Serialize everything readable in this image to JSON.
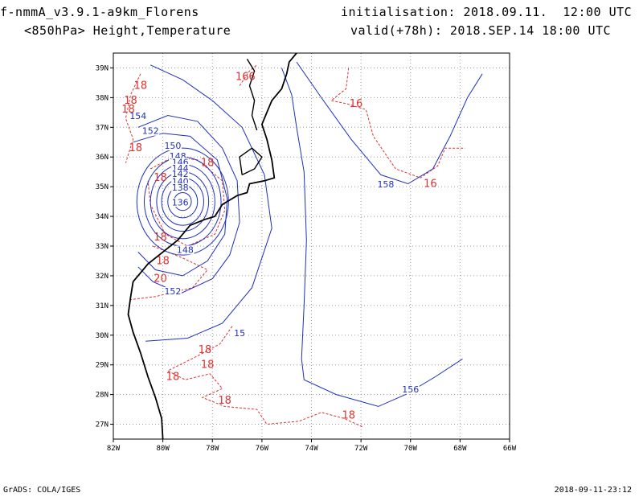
{
  "header": {
    "model": "f-nmmA_v3.9.1-a9km_Florens",
    "level": "<850hPa> Height,Temperature",
    "init": "initialisation: 2018.09.11.  12:00 UTC",
    "valid": "valid(+78h): 2018.SEP.14 18:00 UTC"
  },
  "footer": {
    "left": "GrADS: COLA/IGES",
    "right": "2018-09-11-23:12"
  },
  "colors": {
    "height_contour": "#1f2fbf",
    "temperature_contour": "#e03030",
    "coastline": "#000000",
    "grid": "#9a9a9a"
  },
  "map": {
    "lon_range": [
      -82,
      -66
    ],
    "lat_range": [
      26.5,
      39.5
    ],
    "lon_ticks": [
      {
        "value": -82,
        "label": "82W"
      },
      {
        "value": -80,
        "label": "80W"
      },
      {
        "value": -78,
        "label": "78W"
      },
      {
        "value": -76,
        "label": "76W"
      },
      {
        "value": -74,
        "label": "74W"
      },
      {
        "value": -72,
        "label": "72W"
      },
      {
        "value": -70,
        "label": "70W"
      },
      {
        "value": -68,
        "label": "68W"
      },
      {
        "value": -66,
        "label": "66W"
      }
    ],
    "lat_ticks": [
      {
        "value": 27,
        "label": "27N"
      },
      {
        "value": 28,
        "label": "28N"
      },
      {
        "value": 29,
        "label": "29N"
      },
      {
        "value": 30,
        "label": "30N"
      },
      {
        "value": 31,
        "label": "31N"
      },
      {
        "value": 32,
        "label": "32N"
      },
      {
        "value": 33,
        "label": "33N"
      },
      {
        "value": 34,
        "label": "34N"
      },
      {
        "value": 35,
        "label": "35N"
      },
      {
        "value": 36,
        "label": "36N"
      },
      {
        "value": 37,
        "label": "37N"
      },
      {
        "value": 38,
        "label": "38N"
      },
      {
        "value": 39,
        "label": "39N"
      }
    ],
    "cyclone_center": {
      "lon": -79.2,
      "lat": 34.5
    },
    "height_contours": [
      {
        "label": "136",
        "rx_deg": 0.35,
        "ry_deg": 0.3
      },
      {
        "label": "138",
        "rx_deg": 0.6,
        "ry_deg": 0.55
      },
      {
        "label": "140",
        "rx_deg": 0.85,
        "ry_deg": 0.8
      },
      {
        "label": "142",
        "rx_deg": 1.05,
        "ry_deg": 1.0
      },
      {
        "label": "144",
        "rx_deg": 1.3,
        "ry_deg": 1.25
      },
      {
        "label": "146",
        "rx_deg": 1.55,
        "ry_deg": 1.5
      },
      {
        "label": "148",
        "rx_deg": 1.85,
        "ry_deg": 1.8
      }
    ],
    "height_labels": [
      {
        "text": "154",
        "lon": -81.0,
        "lat": 37.3
      },
      {
        "text": "152",
        "lon": -80.5,
        "lat": 36.8
      },
      {
        "text": "150",
        "lon": -79.6,
        "lat": 36.3
      },
      {
        "text": "148",
        "lon": -79.4,
        "lat": 35.95
      },
      {
        "text": "146",
        "lon": -79.3,
        "lat": 35.75
      },
      {
        "text": "144",
        "lon": -79.3,
        "lat": 35.55
      },
      {
        "text": "142",
        "lon": -79.3,
        "lat": 35.35
      },
      {
        "text": "140",
        "lon": -79.3,
        "lat": 35.1
      },
      {
        "text": "138",
        "lon": -79.3,
        "lat": 34.9
      },
      {
        "text": "136",
        "lon": -79.3,
        "lat": 34.4
      },
      {
        "text": "148",
        "lon": -79.1,
        "lat": 32.8
      },
      {
        "text": "152",
        "lon": -79.6,
        "lat": 31.4
      },
      {
        "text": "15",
        "lon": -76.9,
        "lat": 30.0
      },
      {
        "text": "158",
        "lon": -71.0,
        "lat": 35.0
      },
      {
        "text": "156",
        "lon": -70.0,
        "lat": 28.1
      }
    ],
    "temperature_labels": [
      {
        "text": "18",
        "lon": -80.9,
        "lat": 38.4
      },
      {
        "text": "18",
        "lon": -81.3,
        "lat": 37.9
      },
      {
        "text": "18",
        "lon": -81.4,
        "lat": 37.6
      },
      {
        "text": "16",
        "lon": -76.8,
        "lat": 38.7
      },
      {
        "text": "6",
        "lon": -76.4,
        "lat": 38.7
      },
      {
        "text": "16",
        "lon": -72.2,
        "lat": 37.8
      },
      {
        "text": "18",
        "lon": -81.1,
        "lat": 36.3
      },
      {
        "text": "18",
        "lon": -78.2,
        "lat": 35.8
      },
      {
        "text": "18",
        "lon": -80.1,
        "lat": 35.3
      },
      {
        "text": "18",
        "lon": -80.1,
        "lat": 33.3
      },
      {
        "text": "18",
        "lon": -80.0,
        "lat": 32.5
      },
      {
        "text": "20",
        "lon": -80.1,
        "lat": 31.9
      },
      {
        "text": "16",
        "lon": -69.2,
        "lat": 35.1
      },
      {
        "text": "18",
        "lon": -78.3,
        "lat": 29.5
      },
      {
        "text": "18",
        "lon": -78.2,
        "lat": 29.0
      },
      {
        "text": "18",
        "lon": -79.6,
        "lat": 28.6
      },
      {
        "text": "18",
        "lon": -77.5,
        "lat": 27.8
      },
      {
        "text": "18",
        "lon": -72.5,
        "lat": 27.3
      }
    ]
  }
}
